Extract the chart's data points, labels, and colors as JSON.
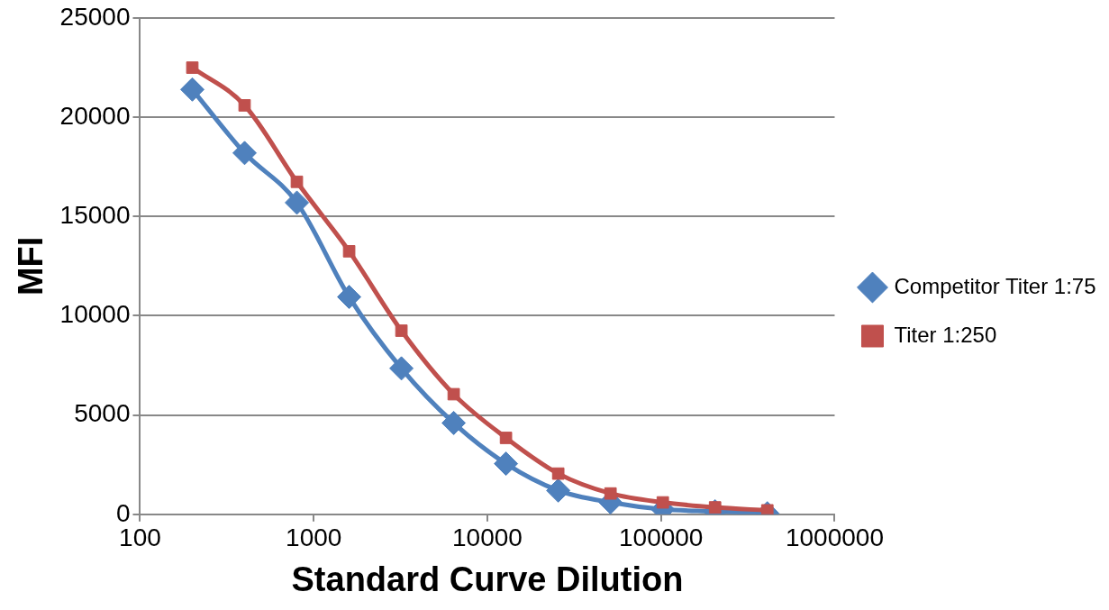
{
  "chart_data": {
    "type": "line",
    "xlabel": "Standard Curve Dilution",
    "ylabel": "MFI",
    "log": "x",
    "x": [
      200,
      400,
      800,
      1600,
      3200,
      6400,
      12800,
      25600,
      51200,
      102400,
      204800,
      409600
    ],
    "series": [
      {
        "name": "Competitor Titer 1:75",
        "color": "#4f81bd",
        "marker": "diamond",
        "values": [
          21400,
          18200,
          15700,
          10950,
          7350,
          4600,
          2550,
          1200,
          600,
          250,
          150,
          50
        ]
      },
      {
        "name": "Titer 1:250",
        "color": "#c0504d",
        "marker": "square",
        "values": [
          22500,
          20600,
          16750,
          13250,
          9250,
          6050,
          3850,
          2050,
          1050,
          600,
          350,
          200
        ]
      }
    ],
    "xlim": [
      100,
      1000000
    ],
    "xticks": [
      100,
      1000,
      10000,
      100000,
      1000000
    ],
    "ylim": [
      0,
      25000
    ],
    "yticks": [
      0,
      5000,
      10000,
      15000,
      20000,
      25000
    ],
    "grid": "y",
    "legend": "right",
    "line_style": "solid"
  }
}
